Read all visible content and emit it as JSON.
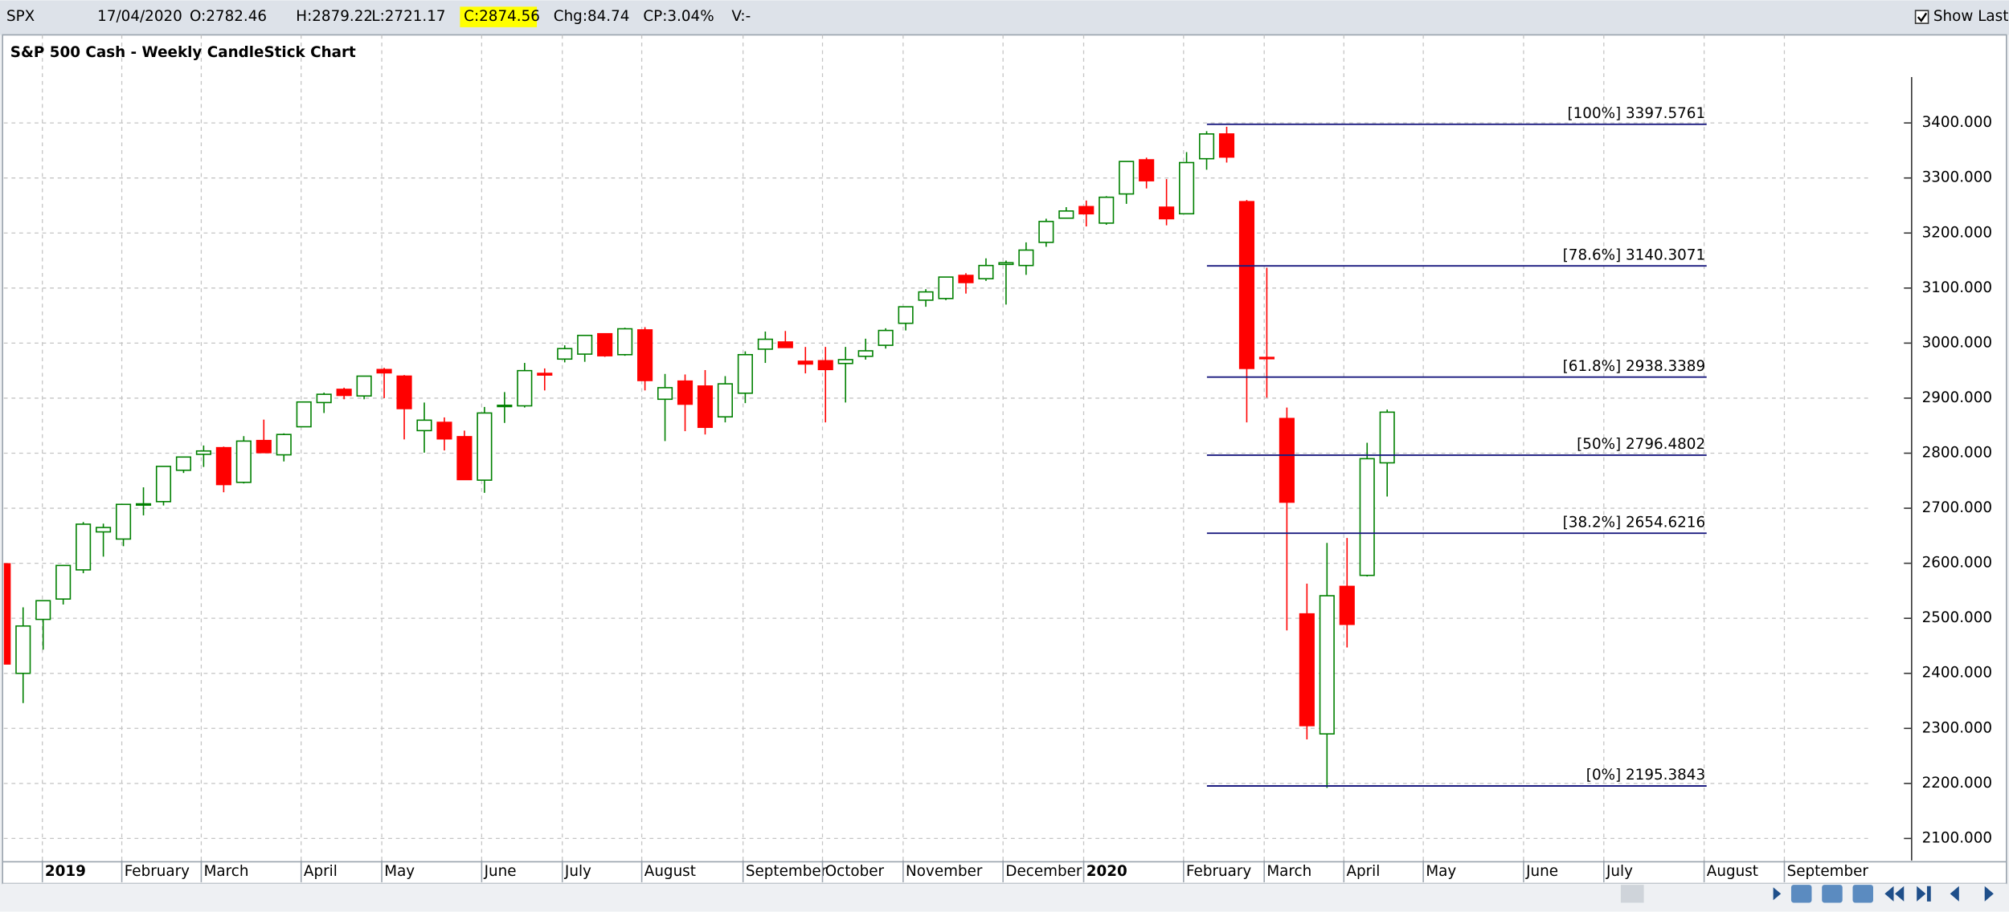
{
  "header": {
    "symbol": "SPX",
    "date": "17/04/2020",
    "open": "O:2782.46",
    "high": "H:2879.22",
    "low": "L:2721.17",
    "close": "C:2874.56",
    "change": "Chg:84.74",
    "change_pct": "CP:3.04%",
    "volume": "V:-",
    "show_last": "Show Last"
  },
  "chart_data": {
    "type": "candlestick",
    "title": "S&P 500 Cash - Weekly CandleStick Chart",
    "up_color": "#008000",
    "down_color": "#ff0000",
    "fib_color": "#1c1c80",
    "grid": true,
    "open": [
      2599,
      2400,
      2498,
      2535,
      2588,
      2657,
      2644,
      2706,
      2712,
      2769,
      2798,
      2810,
      2747,
      2823,
      2797,
      2848,
      2892,
      2916,
      2904,
      2952,
      2940,
      2841,
      2856,
      2830,
      2751,
      2885,
      2886,
      2945,
      2971,
      2980,
      3017,
      2979,
      3024,
      2898,
      2931,
      2922,
      2866,
      2909,
      2989,
      3002,
      2967,
      2968,
      2963,
      2976,
      2996,
      3036,
      3078,
      3081,
      3123,
      3117,
      3143,
      3141,
      3183,
      3227,
      3248,
      3218,
      3271,
      3333,
      3247,
      3235,
      3335,
      3380,
      3257,
      2974,
      2863,
      2508,
      2290,
      2558,
      2578,
      2782.46
    ],
    "high": [
      2601,
      2520,
      2532,
      2597,
      2675,
      2672,
      2708,
      2738,
      2776,
      2793,
      2814,
      2812,
      2831,
      2861,
      2836,
      2893,
      2910,
      2919,
      2940,
      2955,
      2942,
      2892,
      2865,
      2841,
      2884,
      2911,
      2964,
      2954,
      2996,
      3014,
      3018,
      3028,
      3029,
      2944,
      2943,
      2951,
      2940,
      2985,
      3021,
      3022,
      2993,
      2993,
      2993,
      3008,
      3027,
      3066,
      3098,
      3120,
      3127,
      3154,
      3150,
      3183,
      3226,
      3247,
      3259,
      3267,
      3330,
      3337,
      3298,
      3347,
      3385,
      3393,
      3260,
      3137,
      2883,
      2563,
      2637,
      2646,
      2819,
      2879.22
    ],
    "low": [
      2409,
      2346,
      2443,
      2525,
      2582,
      2612,
      2631,
      2687,
      2705,
      2764,
      2775,
      2729,
      2745,
      2801,
      2785,
      2848,
      2873,
      2898,
      2898,
      2900,
      2825,
      2801,
      2805,
      2752,
      2728,
      2855,
      2883,
      2914,
      2965,
      2966,
      2975,
      2977,
      2914,
      2822,
      2840,
      2834,
      2856,
      2891,
      2964,
      2993,
      2945,
      2856,
      2892,
      2970,
      2990,
      3023,
      3066,
      3078,
      3090,
      3113,
      3070,
      3124,
      3175,
      3226,
      3212,
      3215,
      3253,
      3281,
      3214,
      3235,
      3315,
      3328,
      2856,
      2901,
      2478,
      2280,
      2192,
      2447,
      2576,
      2721.17
    ],
    "close": [
      2417,
      2486,
      2532,
      2596,
      2671,
      2665,
      2707,
      2708,
      2776,
      2793,
      2804,
      2743,
      2822,
      2801,
      2834,
      2893,
      2907,
      2905,
      2940,
      2946,
      2881,
      2860,
      2826,
      2752,
      2873,
      2887,
      2950,
      2942,
      2990,
      3014,
      2977,
      3026,
      2932,
      2919,
      2889,
      2847,
      2926,
      2979,
      3007,
      2992,
      2962,
      2952,
      2970,
      2986,
      3023,
      3066,
      3093,
      3120,
      3110,
      3141,
      3146,
      3169,
      3221,
      3240,
      3235,
      3265,
      3330,
      3295,
      3226,
      3328,
      3380,
      3338,
      2954,
      2972,
      2711,
      2305,
      2541,
      2489,
      2790,
      2874.56
    ],
    "xlim": [
      0.04,
      93.1
    ],
    "xticks": [
      {
        "value": 1.96,
        "label": "2019"
      },
      {
        "value": 5.92,
        "label": "February"
      },
      {
        "value": 9.88,
        "label": "March"
      },
      {
        "value": 14.86,
        "label": "April"
      },
      {
        "value": 18.88,
        "label": "May"
      },
      {
        "value": 23.86,
        "label": "June"
      },
      {
        "value": 27.88,
        "label": "July"
      },
      {
        "value": 31.84,
        "label": "August"
      },
      {
        "value": 36.89,
        "label": "September"
      },
      {
        "value": 40.85,
        "label": "October"
      },
      {
        "value": 44.87,
        "label": "November"
      },
      {
        "value": 49.85,
        "label": "December"
      },
      {
        "value": 53.87,
        "label": "2020"
      },
      {
        "value": 58.85,
        "label": "February"
      },
      {
        "value": 62.87,
        "label": "March"
      },
      {
        "value": 66.84,
        "label": "April"
      },
      {
        "value": 70.8,
        "label": "May"
      },
      {
        "value": 75.8,
        "label": "June"
      },
      {
        "value": 79.8,
        "label": "July"
      },
      {
        "value": 84.8,
        "label": "August"
      },
      {
        "value": 88.8,
        "label": "September"
      }
    ],
    "ylim": [
      2060,
      3560
    ],
    "yticks": [
      {
        "value": 2100,
        "label": "2100.000"
      },
      {
        "value": 2200,
        "label": "2200.000"
      },
      {
        "value": 2300,
        "label": "2300.000"
      },
      {
        "value": 2400,
        "label": "2400.000"
      },
      {
        "value": 2500,
        "label": "2500.000"
      },
      {
        "value": 2600,
        "label": "2600.000"
      },
      {
        "value": 2700,
        "label": "2700.000"
      },
      {
        "value": 2800,
        "label": "2800.000"
      },
      {
        "value": 2900,
        "label": "2900.000"
      },
      {
        "value": 3000,
        "label": "3000.000"
      },
      {
        "value": 3100,
        "label": "3100.000"
      },
      {
        "value": 3200,
        "label": "3200.000"
      },
      {
        "value": 3300,
        "label": "3300.000"
      },
      {
        "value": 3400,
        "label": "3400.000"
      }
    ],
    "fib_levels": [
      {
        "value": 3397.5761,
        "label": "[100%] 3397.5761"
      },
      {
        "value": 3140.3071,
        "label": "[78.6%] 3140.3071"
      },
      {
        "value": 2938.3389,
        "label": "[61.8%] 2938.3389"
      },
      {
        "value": 2796.4802,
        "label": "[50%] 2796.4802"
      },
      {
        "value": 2654.6216,
        "label": "[38.2%] 2654.6216"
      },
      {
        "value": 2195.3843,
        "label": "[0%] 2195.3843"
      }
    ]
  }
}
